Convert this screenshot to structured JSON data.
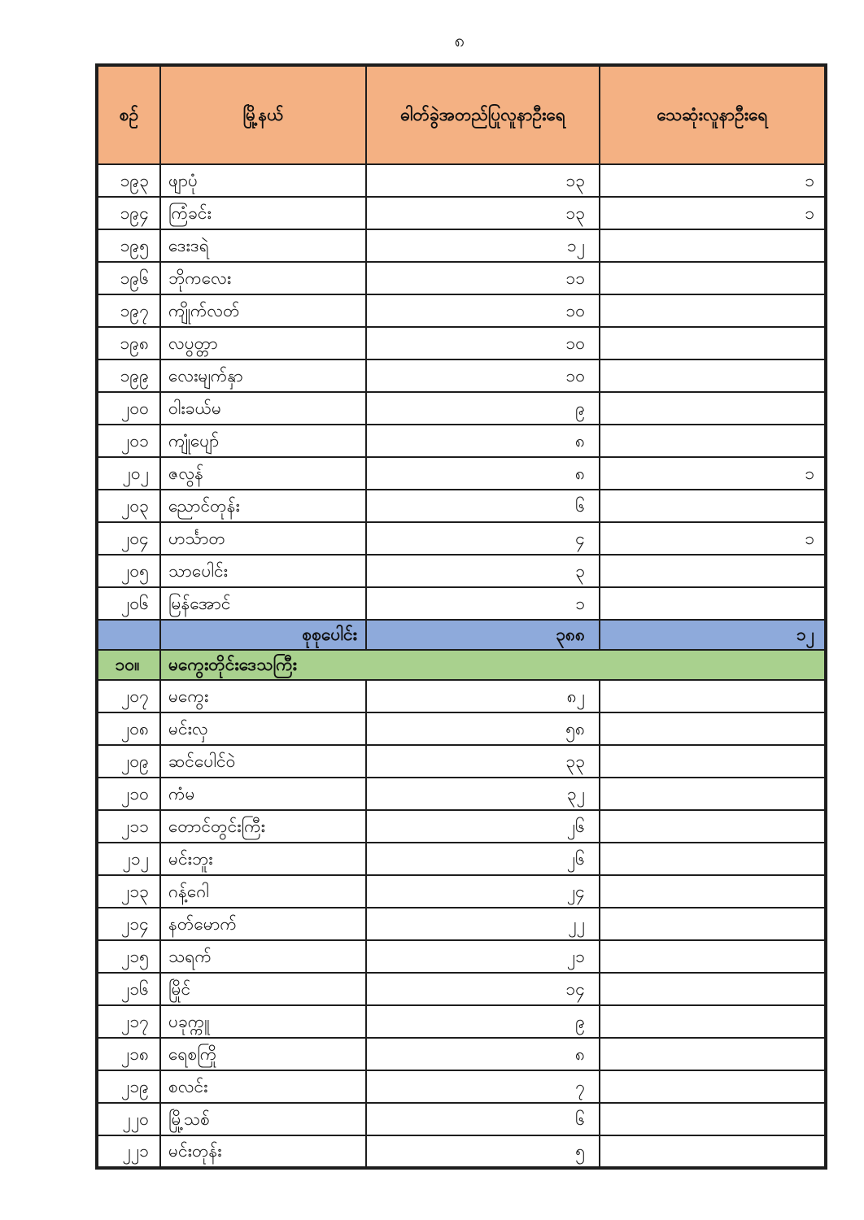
{
  "page": {
    "number": "၈"
  },
  "colors": {
    "header_bg": "#F4B183",
    "total_bg": "#8EAADB",
    "section_bg": "#A9D18E",
    "border": "#1d1d1d",
    "text": "#101010",
    "page_bg": "#ffffff"
  },
  "table": {
    "headers": [
      {
        "label": "စဉ်"
      },
      {
        "label": "မြို့နယ်"
      },
      {
        "label": "ဓါတ်ခွဲအတည်ပြုလူနာဦးရေ"
      },
      {
        "label": "သေဆုံးလူနာဦးရေ"
      }
    ],
    "rows_top": [
      {
        "no": "၁၉၃",
        "township": "ဖျာပုံ",
        "confirmed": "၁၃",
        "deaths": "၁"
      },
      {
        "no": "၁၉၄",
        "township": "ကြံခင်း",
        "confirmed": "၁၃",
        "deaths": "၁"
      },
      {
        "no": "၁၉၅",
        "township": "ဒေးဒရဲ",
        "confirmed": "၁၂",
        "deaths": ""
      },
      {
        "no": "၁၉၆",
        "township": "ဘိုကလေး",
        "confirmed": "၁၁",
        "deaths": ""
      },
      {
        "no": "၁၉၇",
        "township": "ကျိုက်လတ်",
        "confirmed": "၁၀",
        "deaths": ""
      },
      {
        "no": "၁၉၈",
        "township": "လပွတ္တာ",
        "confirmed": "၁၀",
        "deaths": ""
      },
      {
        "no": "၁၉၉",
        "township": "လေးမျက်နှာ",
        "confirmed": "၁၀",
        "deaths": ""
      },
      {
        "no": "၂၀၀",
        "township": "ဝါးခယ်မ",
        "confirmed": "၉",
        "deaths": ""
      },
      {
        "no": "၂၀၁",
        "township": "ကျုံပျော်",
        "confirmed": "၈",
        "deaths": ""
      },
      {
        "no": "၂၀၂",
        "township": "ဇလွန်",
        "confirmed": "၈",
        "deaths": "၁"
      },
      {
        "no": "၂၀၃",
        "township": "ညောင်တုန်း",
        "confirmed": "၆",
        "deaths": ""
      },
      {
        "no": "၂၀၄",
        "township": "ဟင်္သာတ",
        "confirmed": "၄",
        "deaths": "၁"
      },
      {
        "no": "၂၀၅",
        "township": "သာပေါင်း",
        "confirmed": "၃",
        "deaths": ""
      },
      {
        "no": "၂၀၆",
        "township": "မြန်အောင်",
        "confirmed": "၁",
        "deaths": ""
      }
    ],
    "total_row": {
      "label": "စုစုပေါင်း",
      "confirmed": "၃၈၈",
      "deaths": "၁၂"
    },
    "section_row": {
      "no": "၁၀။",
      "name": "မကွေးတိုင်းဒေသကြီး"
    },
    "rows_bottom": [
      {
        "no": "၂၀၇",
        "township": "မကွေး",
        "confirmed": "၈၂",
        "deaths": ""
      },
      {
        "no": "၂၀၈",
        "township": "မင်းလှ",
        "confirmed": "၅၈",
        "deaths": ""
      },
      {
        "no": "၂၀၉",
        "township": "ဆင်ပေါင်ဝဲ",
        "confirmed": "၃၃",
        "deaths": ""
      },
      {
        "no": "၂၁၀",
        "township": "ကံမ",
        "confirmed": "၃၂",
        "deaths": ""
      },
      {
        "no": "၂၁၁",
        "township": "တောင်တွင်းကြီး",
        "confirmed": "၂၆",
        "deaths": ""
      },
      {
        "no": "၂၁၂",
        "township": "မင်းဘူး",
        "confirmed": "၂၆",
        "deaths": ""
      },
      {
        "no": "၂၁၃",
        "township": "ဂန့်ဂေါ",
        "confirmed": "၂၄",
        "deaths": ""
      },
      {
        "no": "၂၁၄",
        "township": "နတ်မောက်",
        "confirmed": "၂၂",
        "deaths": ""
      },
      {
        "no": "၂၁၅",
        "township": "သရက်",
        "confirmed": "၂၁",
        "deaths": ""
      },
      {
        "no": "၂၁၆",
        "township": "မြိုင်",
        "confirmed": "၁၄",
        "deaths": ""
      },
      {
        "no": "၂၁၇",
        "township": "ပခုက္ကူ",
        "confirmed": "၉",
        "deaths": ""
      },
      {
        "no": "၂၁၈",
        "township": "ရေစကြို",
        "confirmed": "၈",
        "deaths": ""
      },
      {
        "no": "၂၁၉",
        "township": "စလင်း",
        "confirmed": "၇",
        "deaths": ""
      },
      {
        "no": "၂၂၀",
        "township": "မြို့သစ်",
        "confirmed": "၆",
        "deaths": ""
      },
      {
        "no": "၂၂၁",
        "township": "မင်းတုန်း",
        "confirmed": "၅",
        "deaths": ""
      }
    ]
  }
}
